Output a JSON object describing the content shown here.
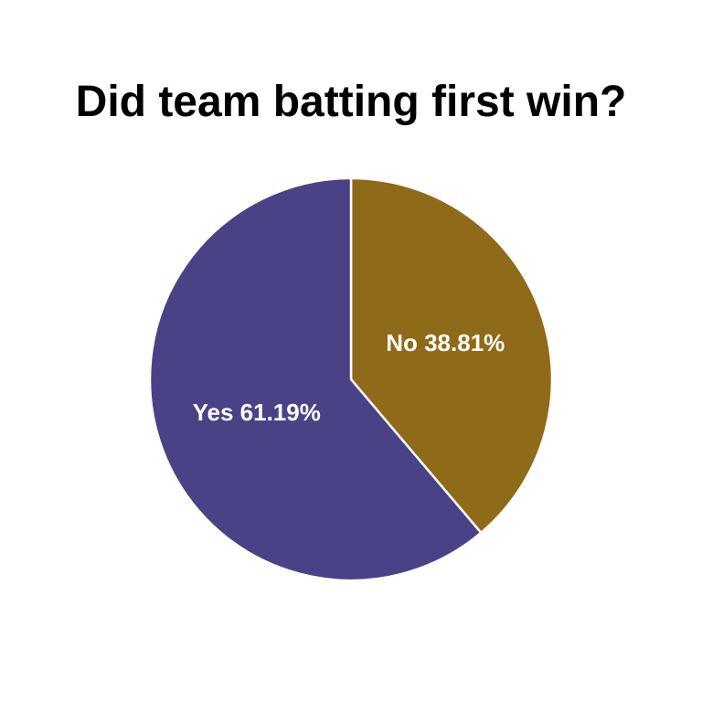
{
  "chart_data": {
    "type": "pie",
    "title": "Did team batting first win?",
    "slices": [
      {
        "label": "No",
        "value": 38.81,
        "display": "No 38.81%",
        "color": "#8f6a18"
      },
      {
        "label": "Yes",
        "value": 61.19,
        "display": "Yes 61.19%",
        "color": "#4a4286"
      }
    ],
    "start": "12 o'clock",
    "direction": "clockwise",
    "slice_border_color": "#ffffff",
    "legend": "none"
  }
}
